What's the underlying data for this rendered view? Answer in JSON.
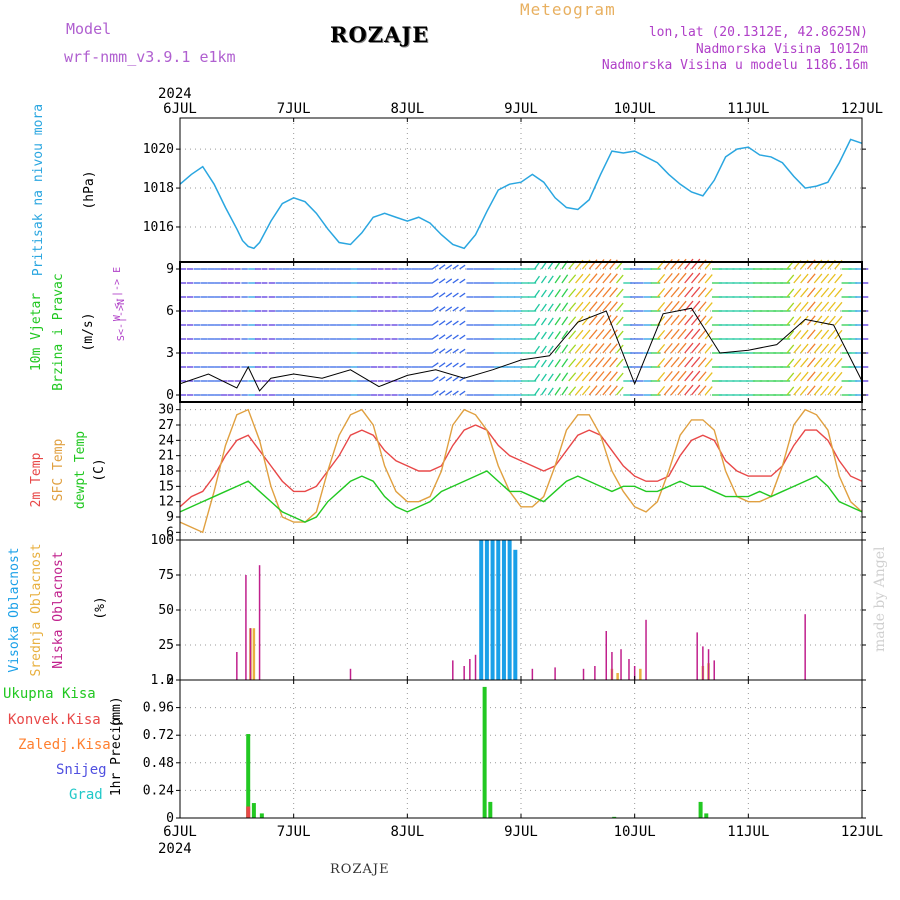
{
  "header": {
    "model_label": "Model",
    "model_name": "wrf-nmm_v3.9.1 e1km",
    "station": "ROZAJE",
    "title": "Meteogram",
    "lonlat": "lon,lat (20.1312E, 42.8625N)",
    "elevation": "Nadmorska Visina 1012m",
    "model_elevation": "Nadmorska Visina u modelu 1186.16m"
  },
  "footer": {
    "station": "ROZAJE",
    "credit": "made by Angel"
  },
  "colors": {
    "pressure": "#2aa6e0",
    "temp2m": "#e84848",
    "sfc": "#e0a040",
    "dewpt": "#22c822",
    "high_cloud": "#1aa0e8",
    "mid_cloud": "#e8b040",
    "low_cloud": "#c0208c",
    "total_precip": "#22c822",
    "conv_precip": "#e84848",
    "frozen": "#ff8030",
    "snow": "#5050e0",
    "hail": "#20c8c8"
  },
  "chart_data": [
    {
      "type": "line",
      "name": "pressure",
      "ylabel": "Pritisak na nivou mora",
      "units": "(hPa)",
      "ylim": [
        1014.2,
        1021.6
      ],
      "yticks": [
        1016,
        1018,
        1020
      ],
      "x_year_top": "2024",
      "x_year_bottom": "2024",
      "xtick_labels": [
        "6JUL",
        "7JUL",
        "8JUL",
        "9JUL",
        "10JUL",
        "11JUL",
        "12JUL"
      ],
      "grid": true,
      "series": [
        {
          "name": "",
          "x": [
            0,
            0.1,
            0.2,
            0.3,
            0.4,
            0.5,
            0.55,
            0.6,
            0.65,
            0.7,
            0.8,
            0.9,
            1.0,
            1.1,
            1.2,
            1.3,
            1.4,
            1.5,
            1.6,
            1.7,
            1.8,
            1.9,
            2.0,
            2.1,
            2.2,
            2.3,
            2.4,
            2.5,
            2.6,
            2.7,
            2.8,
            2.9,
            3.0,
            3.1,
            3.2,
            3.3,
            3.4,
            3.5,
            3.6,
            3.7,
            3.8,
            3.9,
            4.0,
            4.1,
            4.2,
            4.3,
            4.4,
            4.5,
            4.6,
            4.7,
            4.8,
            4.9,
            5.0,
            5.1,
            5.2,
            5.3,
            5.4,
            5.5,
            5.6,
            5.7,
            5.8,
            5.9,
            6.0
          ],
          "values": [
            1018.2,
            1018.7,
            1019.1,
            1018.2,
            1017.0,
            1015.9,
            1015.3,
            1015.0,
            1014.9,
            1015.2,
            1016.3,
            1017.2,
            1017.5,
            1017.3,
            1016.7,
            1015.9,
            1015.2,
            1015.1,
            1015.7,
            1016.5,
            1016.7,
            1016.5,
            1016.3,
            1016.5,
            1016.2,
            1015.6,
            1015.1,
            1014.9,
            1015.6,
            1016.8,
            1017.9,
            1018.2,
            1018.3,
            1018.7,
            1018.3,
            1017.5,
            1017.0,
            1016.9,
            1017.4,
            1018.7,
            1019.9,
            1019.8,
            1019.9,
            1019.6,
            1019.3,
            1018.7,
            1018.2,
            1017.8,
            1017.6,
            1018.4,
            1019.6,
            1020.0,
            1020.1,
            1019.7,
            1019.6,
            1019.3,
            1018.6,
            1018.0,
            1018.1,
            1018.3,
            1019.3,
            1020.5,
            1020.3
          ]
        }
      ]
    },
    {
      "type": "vector",
      "name": "wind",
      "ylabel": "10m Vjetar",
      "ylabel2": "Brzina i Pravac",
      "units": "(m/s)",
      "compass": "W <-|-> E",
      "compass2": "S<-|->N",
      "ylim": [
        -0.5,
        9.5
      ],
      "yticks": [
        0,
        3,
        6,
        9
      ],
      "grid": true,
      "series": [
        {
          "name": "",
          "x": [
            0,
            0.25,
            0.5,
            0.6,
            0.7,
            0.8,
            1.0,
            1.25,
            1.5,
            1.75,
            2.0,
            2.25,
            2.5,
            2.75,
            3.0,
            3.25,
            3.5,
            3.75,
            4.0,
            4.25,
            4.5,
            4.75,
            5.0,
            5.25,
            5.5,
            5.75,
            6.0
          ],
          "values": [
            0.8,
            1.5,
            0.5,
            2.0,
            0.3,
            1.2,
            1.5,
            1.2,
            1.8,
            0.6,
            1.4,
            1.8,
            1.2,
            1.8,
            2.5,
            2.8,
            5.2,
            6.0,
            0.8,
            5.8,
            6.2,
            3.0,
            3.2,
            3.6,
            5.4,
            5.0,
            1.0
          ]
        }
      ]
    },
    {
      "type": "line",
      "name": "temperature",
      "ylabel": "2m Temp",
      "ylabel2": "SFC Temp",
      "ylabel3": "dewpt Temp",
      "units": "(C)",
      "ylim": [
        4.5,
        31.5
      ],
      "yticks": [
        6,
        9,
        12,
        15,
        18,
        21,
        24,
        27,
        30
      ],
      "grid": true,
      "series": [
        {
          "name": "2m Temp",
          "x": [
            0,
            0.1,
            0.2,
            0.3,
            0.4,
            0.5,
            0.6,
            0.7,
            0.8,
            0.9,
            1.0,
            1.1,
            1.2,
            1.3,
            1.4,
            1.5,
            1.6,
            1.7,
            1.8,
            1.9,
            2.0,
            2.1,
            2.2,
            2.3,
            2.4,
            2.5,
            2.6,
            2.7,
            2.8,
            2.9,
            3.0,
            3.1,
            3.2,
            3.3,
            3.4,
            3.5,
            3.6,
            3.7,
            3.8,
            3.9,
            4.0,
            4.1,
            4.2,
            4.3,
            4.4,
            4.5,
            4.6,
            4.7,
            4.8,
            4.9,
            5.0,
            5.1,
            5.2,
            5.3,
            5.4,
            5.5,
            5.6,
            5.7,
            5.8,
            5.9,
            6.0
          ],
          "values": [
            11,
            13,
            14,
            17,
            21,
            24,
            25,
            22,
            19,
            16,
            14,
            14,
            15,
            18,
            21,
            25,
            26,
            25,
            22,
            20,
            19,
            18,
            18,
            19,
            23,
            26,
            27,
            26,
            23,
            21,
            20,
            19,
            18,
            19,
            22,
            25,
            26,
            25,
            22,
            19,
            17,
            16,
            16,
            17,
            21,
            24,
            25,
            24,
            20,
            18,
            17,
            17,
            17,
            19,
            23,
            26,
            26,
            24,
            20,
            17,
            16
          ]
        },
        {
          "name": "SFC Temp",
          "x": [
            0,
            0.1,
            0.2,
            0.3,
            0.4,
            0.5,
            0.6,
            0.7,
            0.8,
            0.9,
            1.0,
            1.1,
            1.2,
            1.3,
            1.4,
            1.5,
            1.6,
            1.7,
            1.8,
            1.9,
            2.0,
            2.1,
            2.2,
            2.3,
            2.4,
            2.5,
            2.6,
            2.7,
            2.8,
            2.9,
            3.0,
            3.1,
            3.2,
            3.3,
            3.4,
            3.5,
            3.6,
            3.7,
            3.8,
            3.9,
            4.0,
            4.1,
            4.2,
            4.3,
            4.4,
            4.5,
            4.6,
            4.7,
            4.8,
            4.9,
            5.0,
            5.1,
            5.2,
            5.3,
            5.4,
            5.5,
            5.6,
            5.7,
            5.8,
            5.9,
            6.0
          ],
          "values": [
            8,
            7,
            6,
            14,
            23,
            29,
            30,
            24,
            15,
            9,
            8,
            8,
            10,
            18,
            25,
            29,
            30,
            27,
            19,
            14,
            12,
            12,
            13,
            18,
            27,
            30,
            29,
            26,
            19,
            14,
            11,
            11,
            13,
            19,
            26,
            29,
            29,
            25,
            18,
            14,
            11,
            10,
            12,
            18,
            25,
            28,
            28,
            26,
            18,
            13,
            12,
            12,
            13,
            19,
            27,
            30,
            29,
            26,
            17,
            12,
            10
          ]
        },
        {
          "name": "dewpt Temp",
          "x": [
            0,
            0.1,
            0.2,
            0.3,
            0.4,
            0.5,
            0.6,
            0.7,
            0.8,
            0.9,
            1.0,
            1.1,
            1.2,
            1.3,
            1.4,
            1.5,
            1.6,
            1.7,
            1.8,
            1.9,
            2.0,
            2.1,
            2.2,
            2.3,
            2.4,
            2.5,
            2.6,
            2.7,
            2.8,
            2.9,
            3.0,
            3.1,
            3.2,
            3.3,
            3.4,
            3.5,
            3.6,
            3.7,
            3.8,
            3.9,
            4.0,
            4.1,
            4.2,
            4.3,
            4.4,
            4.5,
            4.6,
            4.7,
            4.8,
            4.9,
            5.0,
            5.1,
            5.2,
            5.3,
            5.4,
            5.5,
            5.6,
            5.7,
            5.8,
            5.9,
            6.0
          ],
          "values": [
            10,
            11,
            12,
            13,
            14,
            15,
            16,
            14,
            12,
            10,
            9,
            8,
            9,
            12,
            14,
            16,
            17,
            16,
            13,
            11,
            10,
            11,
            12,
            14,
            15,
            16,
            17,
            18,
            16,
            14,
            14,
            13,
            12,
            14,
            16,
            17,
            16,
            15,
            14,
            15,
            15,
            14,
            14,
            15,
            16,
            15,
            15,
            14,
            13,
            13,
            13,
            14,
            13,
            14,
            15,
            16,
            17,
            15,
            12,
            11,
            10
          ]
        }
      ]
    },
    {
      "type": "bar",
      "name": "cloud",
      "ylabel": "Visoka Oblacnost",
      "ylabel2": "Srednja Oblacnost",
      "ylabel3": "Niska Oblacnost",
      "units": "(%)",
      "ylim": [
        0,
        100
      ],
      "yticks": [
        0,
        25,
        50,
        75,
        100
      ],
      "grid": true,
      "series": [
        {
          "name": "Visoka Oblacnost",
          "x": [
            2.65,
            2.7,
            2.75,
            2.8,
            2.85,
            2.9,
            2.95
          ],
          "values": [
            100,
            100,
            100,
            100,
            100,
            100,
            93
          ]
        },
        {
          "name": "Srednja Oblacnost",
          "x": [
            0.62,
            0.65,
            3.8,
            3.85,
            4.05,
            4.6,
            4.65
          ],
          "values": [
            37,
            37,
            8,
            5,
            8,
            10,
            12
          ]
        },
        {
          "name": "Niska Oblacnost",
          "x": [
            0.5,
            0.58,
            0.62,
            0.7,
            1.5,
            2.4,
            2.5,
            2.55,
            2.6,
            3.1,
            3.3,
            3.55,
            3.65,
            3.75,
            3.8,
            3.88,
            3.95,
            4.0,
            4.1,
            4.55,
            4.6,
            4.65,
            4.7,
            5.5
          ],
          "values": [
            20,
            75,
            37,
            82,
            8,
            14,
            10,
            15,
            18,
            8,
            9,
            8,
            10,
            35,
            20,
            22,
            15,
            10,
            43,
            34,
            24,
            22,
            14,
            47
          ]
        }
      ]
    },
    {
      "type": "bar",
      "name": "precip",
      "ylabel": "1hr Precip",
      "units": "(mm)",
      "legend": [
        "Ukupna Kisa",
        "Konvek.Kisa",
        "Zaledj.Kisa",
        "Snijeg",
        "Grad"
      ],
      "ylim": [
        0,
        1.2
      ],
      "yticks": [
        0,
        0.24,
        0.48,
        0.72,
        0.96,
        1.2
      ],
      "grid": true,
      "series": [
        {
          "name": "Ukupna Kisa",
          "x": [
            0.6,
            0.65,
            0.72,
            2.68,
            2.73,
            3.82,
            4.58,
            4.63
          ],
          "values": [
            0.73,
            0.13,
            0.04,
            1.14,
            0.14,
            0.01,
            0.14,
            0.04
          ]
        },
        {
          "name": "Konvek.Kisa",
          "x": [
            0.6
          ],
          "values": [
            0.1
          ]
        }
      ]
    }
  ]
}
